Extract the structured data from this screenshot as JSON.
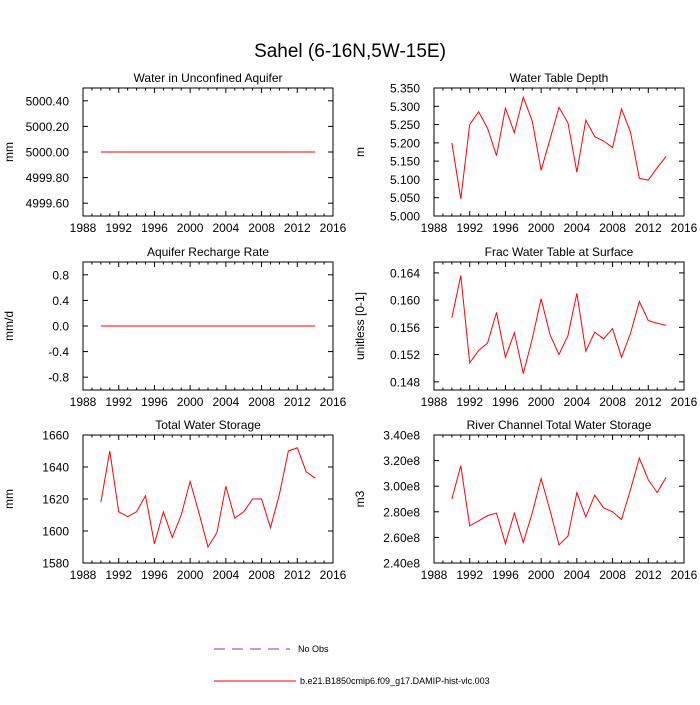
{
  "title": "Sahel (6-16N,5W-15E)",
  "colors": {
    "series": "#ff0000",
    "obs": "#7a3fb5",
    "axis": "#000000"
  },
  "legend": {
    "obs_label": "No Obs",
    "model_label": "b.e21.B1850cmip6.f09_g17.DAMIP-hist-vlc.003"
  },
  "chart_data": [
    {
      "type": "line",
      "title": "Water in Unconfined Aquifer",
      "ylabel": "mm",
      "xlim": [
        1988,
        2016
      ],
      "xticks": [
        1988,
        1992,
        1996,
        2000,
        2004,
        2008,
        2012,
        2016
      ],
      "xtick_labels": [
        "1988",
        "1992",
        "1996",
        "2000",
        "2004",
        "2008",
        "2012",
        "2016"
      ],
      "ylim": [
        4999.5,
        5000.5
      ],
      "yticks": [
        4999.6,
        4999.8,
        5000.0,
        5000.2,
        5000.4
      ],
      "ytick_labels": [
        "4999.60",
        "4999.80",
        "5000.00",
        "5000.20",
        "5000.40"
      ],
      "x": [
        1990,
        2014
      ],
      "y": [
        5000.0,
        5000.0
      ]
    },
    {
      "type": "line",
      "title": "Water Table Depth",
      "ylabel": "m",
      "xlim": [
        1988,
        2016
      ],
      "xticks": [
        1988,
        1992,
        1996,
        2000,
        2004,
        2008,
        2012,
        2016
      ],
      "xtick_labels": [
        "1988",
        "1992",
        "1996",
        "2000",
        "2004",
        "2008",
        "2012",
        "2016"
      ],
      "ylim": [
        5.0,
        5.35
      ],
      "yticks": [
        5.0,
        5.05,
        5.1,
        5.15,
        5.2,
        5.25,
        5.3,
        5.35
      ],
      "ytick_labels": [
        "5.000",
        "5.050",
        "5.100",
        "5.150",
        "5.200",
        "5.250",
        "5.300",
        "5.350"
      ],
      "x": [
        1990,
        1991,
        1992,
        1993,
        1994,
        1995,
        1996,
        1997,
        1998,
        1999,
        2000,
        2001,
        2002,
        2003,
        2004,
        2005,
        2006,
        2007,
        2008,
        2009,
        2010,
        2011,
        2012,
        2013,
        2014
      ],
      "y": [
        5.2,
        5.047,
        5.25,
        5.285,
        5.24,
        5.165,
        5.295,
        5.228,
        5.325,
        5.26,
        5.125,
        5.21,
        5.297,
        5.255,
        5.12,
        5.262,
        5.217,
        5.205,
        5.187,
        5.293,
        5.23,
        5.103,
        5.098,
        5.132,
        5.163
      ]
    },
    {
      "type": "line",
      "title": "Aquifer Recharge Rate",
      "ylabel": "mm/d",
      "xlim": [
        1988,
        2016
      ],
      "xticks": [
        1988,
        1992,
        1996,
        2000,
        2004,
        2008,
        2012,
        2016
      ],
      "xtick_labels": [
        "1988",
        "1992",
        "1996",
        "2000",
        "2004",
        "2008",
        "2012",
        "2016"
      ],
      "ylim": [
        -1.0,
        1.0
      ],
      "yticks": [
        -0.8,
        -0.4,
        0.0,
        0.4,
        0.8
      ],
      "ytick_labels": [
        "-0.8",
        "-0.4",
        "0.0",
        "0.4",
        "0.8"
      ],
      "x": [
        1990,
        2014
      ],
      "y": [
        0.0,
        0.0
      ]
    },
    {
      "type": "line",
      "title": "Frac Water Table at Surface",
      "ylabel": "unitless [0-1]",
      "xlim": [
        1988,
        2016
      ],
      "xticks": [
        1988,
        1992,
        1996,
        2000,
        2004,
        2008,
        2012,
        2016
      ],
      "xtick_labels": [
        "1988",
        "1992",
        "1996",
        "2000",
        "2004",
        "2008",
        "2012",
        "2016"
      ],
      "ylim": [
        0.1468,
        0.1656
      ],
      "yticks": [
        0.148,
        0.152,
        0.156,
        0.16,
        0.164
      ],
      "ytick_labels": [
        "0.148",
        "0.152",
        "0.156",
        "0.160",
        "0.164"
      ],
      "x": [
        1990,
        1991,
        1992,
        1993,
        1994,
        1995,
        1996,
        1997,
        1998,
        1999,
        2000,
        2001,
        2002,
        2003,
        2004,
        2005,
        2006,
        2007,
        2008,
        2009,
        2010,
        2011,
        2012,
        2013,
        2014
      ],
      "y": [
        0.1574,
        0.1636,
        0.1508,
        0.1526,
        0.1537,
        0.1582,
        0.1516,
        0.1552,
        0.1492,
        0.1543,
        0.1602,
        0.1549,
        0.152,
        0.1548,
        0.161,
        0.1525,
        0.1553,
        0.1543,
        0.1558,
        0.1516,
        0.1551,
        0.1598,
        0.157,
        0.1566,
        0.1563
      ]
    },
    {
      "type": "line",
      "title": "Total Water Storage",
      "ylabel": "mm",
      "xlim": [
        1988,
        2016
      ],
      "xticks": [
        1988,
        1992,
        1996,
        2000,
        2004,
        2008,
        2012,
        2016
      ],
      "xtick_labels": [
        "1988",
        "1992",
        "1996",
        "2000",
        "2004",
        "2008",
        "2012",
        "2016"
      ],
      "ylim": [
        1580,
        1660
      ],
      "yticks": [
        1580,
        1600,
        1620,
        1640,
        1660
      ],
      "ytick_labels": [
        "1580",
        "1600",
        "1620",
        "1640",
        "1660"
      ],
      "x": [
        1990,
        1991,
        1992,
        1993,
        1994,
        1995,
        1996,
        1997,
        1998,
        1999,
        2000,
        2001,
        2002,
        2003,
        2004,
        2005,
        2006,
        2007,
        2008,
        2009,
        2010,
        2011,
        2012,
        2013,
        2014
      ],
      "y": [
        1618,
        1650,
        1612,
        1609,
        1612,
        1622,
        1592,
        1612,
        1596,
        1610,
        1631,
        1611,
        1590,
        1599,
        1628,
        1608,
        1612,
        1620,
        1620,
        1602,
        1623,
        1650,
        1652,
        1637,
        1633
      ]
    },
    {
      "type": "line",
      "title": "River Channel Total Water Storage",
      "ylabel": "m3",
      "xlim": [
        1988,
        2016
      ],
      "xticks": [
        1988,
        1992,
        1996,
        2000,
        2004,
        2008,
        2012,
        2016
      ],
      "xtick_labels": [
        "1988",
        "1992",
        "1996",
        "2000",
        "2004",
        "2008",
        "2012",
        "2016"
      ],
      "ylim": [
        240000000.0,
        340000000.0
      ],
      "yticks": [
        240000000.0,
        260000000.0,
        280000000.0,
        300000000.0,
        320000000.0,
        340000000.0
      ],
      "ytick_labels": [
        "2.40e8",
        "2.60e8",
        "2.80e8",
        "3.00e8",
        "3.20e8",
        "3.40e8"
      ],
      "x": [
        1990,
        1991,
        1992,
        1993,
        1994,
        1995,
        1996,
        1997,
        1998,
        1999,
        2000,
        2001,
        2002,
        2003,
        2004,
        2005,
        2006,
        2007,
        2008,
        2009,
        2010,
        2011,
        2012,
        2013,
        2014
      ],
      "y": [
        290000000.0,
        316000000.0,
        269000000.0,
        273000000.0,
        277000000.0,
        279000000.0,
        255000000.0,
        279000000.0,
        256000000.0,
        279000000.0,
        306000000.0,
        281000000.0,
        254000000.0,
        261000000.0,
        295000000.0,
        276000000.0,
        293000000.0,
        283000000.0,
        280000000.0,
        274000000.0,
        297000000.0,
        322000000.0,
        305000000.0,
        295000000.0,
        307000000.0
      ]
    }
  ]
}
